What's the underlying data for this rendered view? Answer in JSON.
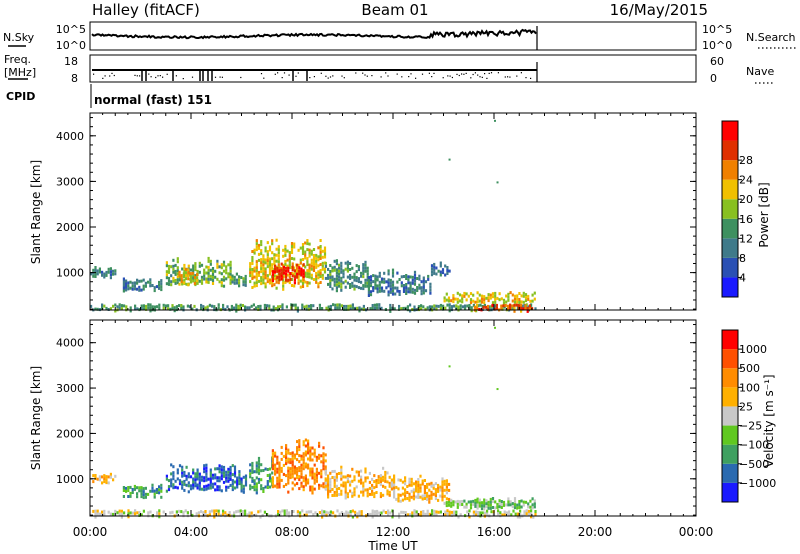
{
  "header": {
    "station": "Halley (fitACF)",
    "beam": "Beam 01",
    "date": "16/May/2015"
  },
  "nsky_panel": {
    "left_label": "N.Sky",
    "left_ticks": [
      "10^5",
      "10^0"
    ],
    "right_label": "N.Search",
    "right_ticks": [
      "10^5",
      "10^0"
    ],
    "right_legend_line": "dotted"
  },
  "freq_panel": {
    "left_label_line1": "Freq.",
    "left_label_line2": "[MHz]",
    "left_ticks": [
      "18",
      "8"
    ],
    "right_label": "Nave",
    "right_ticks": [
      "60",
      "0"
    ],
    "right_legend_line": "dotted"
  },
  "cpid": {
    "label": "CPID",
    "value": "normal (fast) 151"
  },
  "colors": {
    "power_scale": [
      "#1a1aff",
      "#2a50b4",
      "#3f7a8a",
      "#3e9060",
      "#88c020",
      "#f0c000",
      "#f08000",
      "#e03000",
      "#ff0000"
    ],
    "velocity_scale": [
      "#ff0000",
      "#ff5000",
      "#ff8c00",
      "#ffb000",
      "#c8c8c8",
      "#60c820",
      "#3fa060",
      "#2a6ab0",
      "#1a1aff"
    ]
  },
  "chart_data": [
    {
      "type": "heatmap",
      "title": "Power",
      "ylabel": "Slant Range [km]",
      "xlabel": "Time UT",
      "x_ticks": [
        "00:00",
        "04:00",
        "08:00",
        "12:00",
        "16:00",
        "20:00",
        "00:00"
      ],
      "y_ticks": [
        "1000",
        "2000",
        "3000",
        "4000"
      ],
      "xlim_hours": [
        0,
        24
      ],
      "ylim_km": [
        180,
        4500
      ],
      "colorbar": {
        "label": "Power [dB]",
        "ticks": [
          "4",
          "8",
          "12",
          "16",
          "20",
          "24",
          "28"
        ],
        "range": [
          0,
          31
        ]
      },
      "echo_regions": [
        {
          "t0": 0.0,
          "t1": 1.0,
          "r0": 900,
          "r1": 1150,
          "level": 10
        },
        {
          "t0": 1.3,
          "t1": 2.8,
          "r0": 600,
          "r1": 900,
          "level": 9
        },
        {
          "t0": 3.0,
          "t1": 5.6,
          "r0": 700,
          "r1": 1350,
          "level": 14
        },
        {
          "t0": 3.5,
          "t1": 4.2,
          "r0": 750,
          "r1": 1100,
          "level": 20
        },
        {
          "t0": 5.6,
          "t1": 6.2,
          "r0": 700,
          "r1": 1000,
          "level": 12
        },
        {
          "t0": 6.3,
          "t1": 9.3,
          "r0": 650,
          "r1": 1750,
          "level": 18
        },
        {
          "t0": 7.2,
          "t1": 8.5,
          "r0": 800,
          "r1": 1250,
          "level": 27
        },
        {
          "t0": 9.3,
          "t1": 11.0,
          "r0": 600,
          "r1": 1300,
          "level": 11
        },
        {
          "t0": 11.0,
          "t1": 13.5,
          "r0": 500,
          "r1": 1100,
          "level": 9
        },
        {
          "t0": 13.5,
          "t1": 14.2,
          "r0": 950,
          "r1": 1250,
          "level": 8
        },
        {
          "t0": 14.0,
          "t1": 17.6,
          "r0": 350,
          "r1": 600,
          "level": 18
        },
        {
          "t0": 0.0,
          "t1": 17.6,
          "r0": 180,
          "r1": 330,
          "level": 12
        },
        {
          "t0": 15.2,
          "t1": 17.5,
          "r0": 180,
          "r1": 320,
          "level": 24
        }
      ]
    },
    {
      "type": "heatmap",
      "title": "Velocity",
      "ylabel": "Slant Range [km]",
      "xlabel": "Time UT",
      "x_ticks": [
        "00:00",
        "04:00",
        "08:00",
        "12:00",
        "16:00",
        "20:00",
        "00:00"
      ],
      "y_ticks": [
        "1000",
        "2000",
        "3000",
        "4000"
      ],
      "xlim_hours": [
        0,
        24
      ],
      "ylim_km": [
        180,
        4500
      ],
      "colorbar": {
        "label": "Velocity [m s⁻¹]",
        "ticks": [
          "1000",
          "500",
          "100",
          "25",
          "−25",
          "−100",
          "−500",
          "−1000"
        ],
        "range": [
          -1200,
          1200
        ]
      },
      "echo_regions": [
        {
          "t0": 0.0,
          "t1": 1.0,
          "r0": 900,
          "r1": 1150,
          "level": 3
        },
        {
          "t0": 1.3,
          "t1": 2.8,
          "r0": 600,
          "r1": 900,
          "level": 6
        },
        {
          "t0": 3.0,
          "t1": 6.2,
          "r0": 700,
          "r1": 1350,
          "level": 7
        },
        {
          "t0": 6.3,
          "t1": 7.2,
          "r0": 700,
          "r1": 1500,
          "level": 6
        },
        {
          "t0": 7.2,
          "t1": 9.3,
          "r0": 700,
          "r1": 1900,
          "level": 2
        },
        {
          "t0": 9.3,
          "t1": 12.0,
          "r0": 600,
          "r1": 1300,
          "level": 3
        },
        {
          "t0": 12.0,
          "t1": 14.2,
          "r0": 500,
          "r1": 1100,
          "level": 3
        },
        {
          "t0": 14.0,
          "t1": 17.6,
          "r0": 350,
          "r1": 600,
          "level": 5
        },
        {
          "t0": 0.0,
          "t1": 17.6,
          "r0": 180,
          "r1": 330,
          "level": 4
        }
      ]
    }
  ]
}
